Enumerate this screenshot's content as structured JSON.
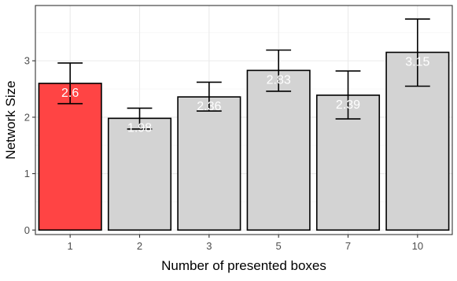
{
  "chart_data": {
    "type": "bar",
    "xlabel": "Number of presented boxes",
    "ylabel": "Network Size",
    "categories": [
      "1",
      "2",
      "3",
      "5",
      "7",
      "10"
    ],
    "values": [
      2.6,
      1.98,
      2.36,
      2.83,
      2.39,
      3.15
    ],
    "data_labels": [
      "2.6",
      "1.98",
      "2.36",
      "2.83",
      "2.39",
      "3.15"
    ],
    "error_low": [
      2.24,
      1.79,
      2.11,
      2.46,
      1.97,
      2.55
    ],
    "error_high": [
      2.96,
      2.16,
      2.62,
      3.19,
      2.82,
      3.74
    ],
    "highlight_index": 0,
    "colors": {
      "highlight": "#ff4444",
      "default": "#d3d3d3"
    },
    "ylim": [
      -0.08,
      3.98
    ],
    "yticks": [
      0,
      1,
      2,
      3
    ],
    "yticklabels": [
      "0",
      "1",
      "2",
      "3"
    ],
    "grid": true,
    "theme": "bw"
  }
}
